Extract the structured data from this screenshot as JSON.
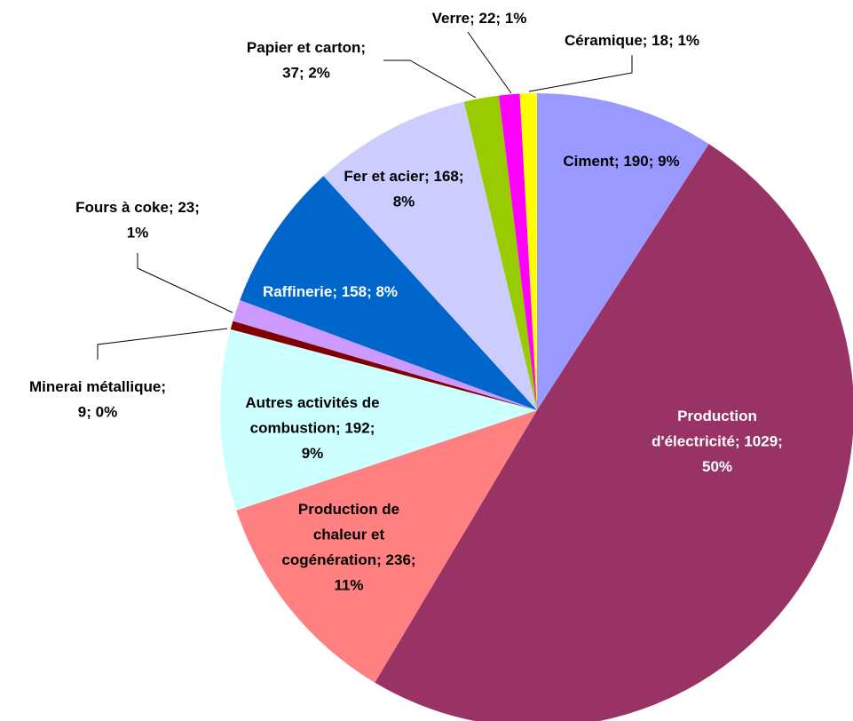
{
  "chart_data": {
    "type": "pie",
    "values": [
      190,
      1029,
      236,
      192,
      9,
      23,
      158,
      168,
      37,
      22,
      18
    ],
    "value_labels": [
      [
        "Ciment; 190; 9%"
      ],
      [
        "Production",
        "d'électricité; 1029;",
        "50%"
      ],
      [
        "Production de",
        "chaleur et",
        "cogénération; 236;",
        "11%"
      ],
      [
        "Autres activités de",
        "combustion; 192;",
        "9%"
      ],
      [
        "Minerai métallique;",
        "9; 0%"
      ],
      [
        "Fours à coke; 23;",
        "1%"
      ],
      [
        "Raffinerie; 158; 8%"
      ],
      [
        "Fer et acier; 168;",
        "8%"
      ],
      [
        "Papier et carton;",
        "37; 2%"
      ],
      [
        "Verre; 22; 1%"
      ],
      [
        "Céramique; 18; 1%"
      ]
    ],
    "colors": [
      "#9999ff",
      "#993366",
      "#ff8080",
      "#ccffff",
      "#800000",
      "#cc99ff",
      "#0066cc",
      "#ccccff",
      "#99cc00",
      "#ff00ff",
      "#ffff00"
    ]
  }
}
